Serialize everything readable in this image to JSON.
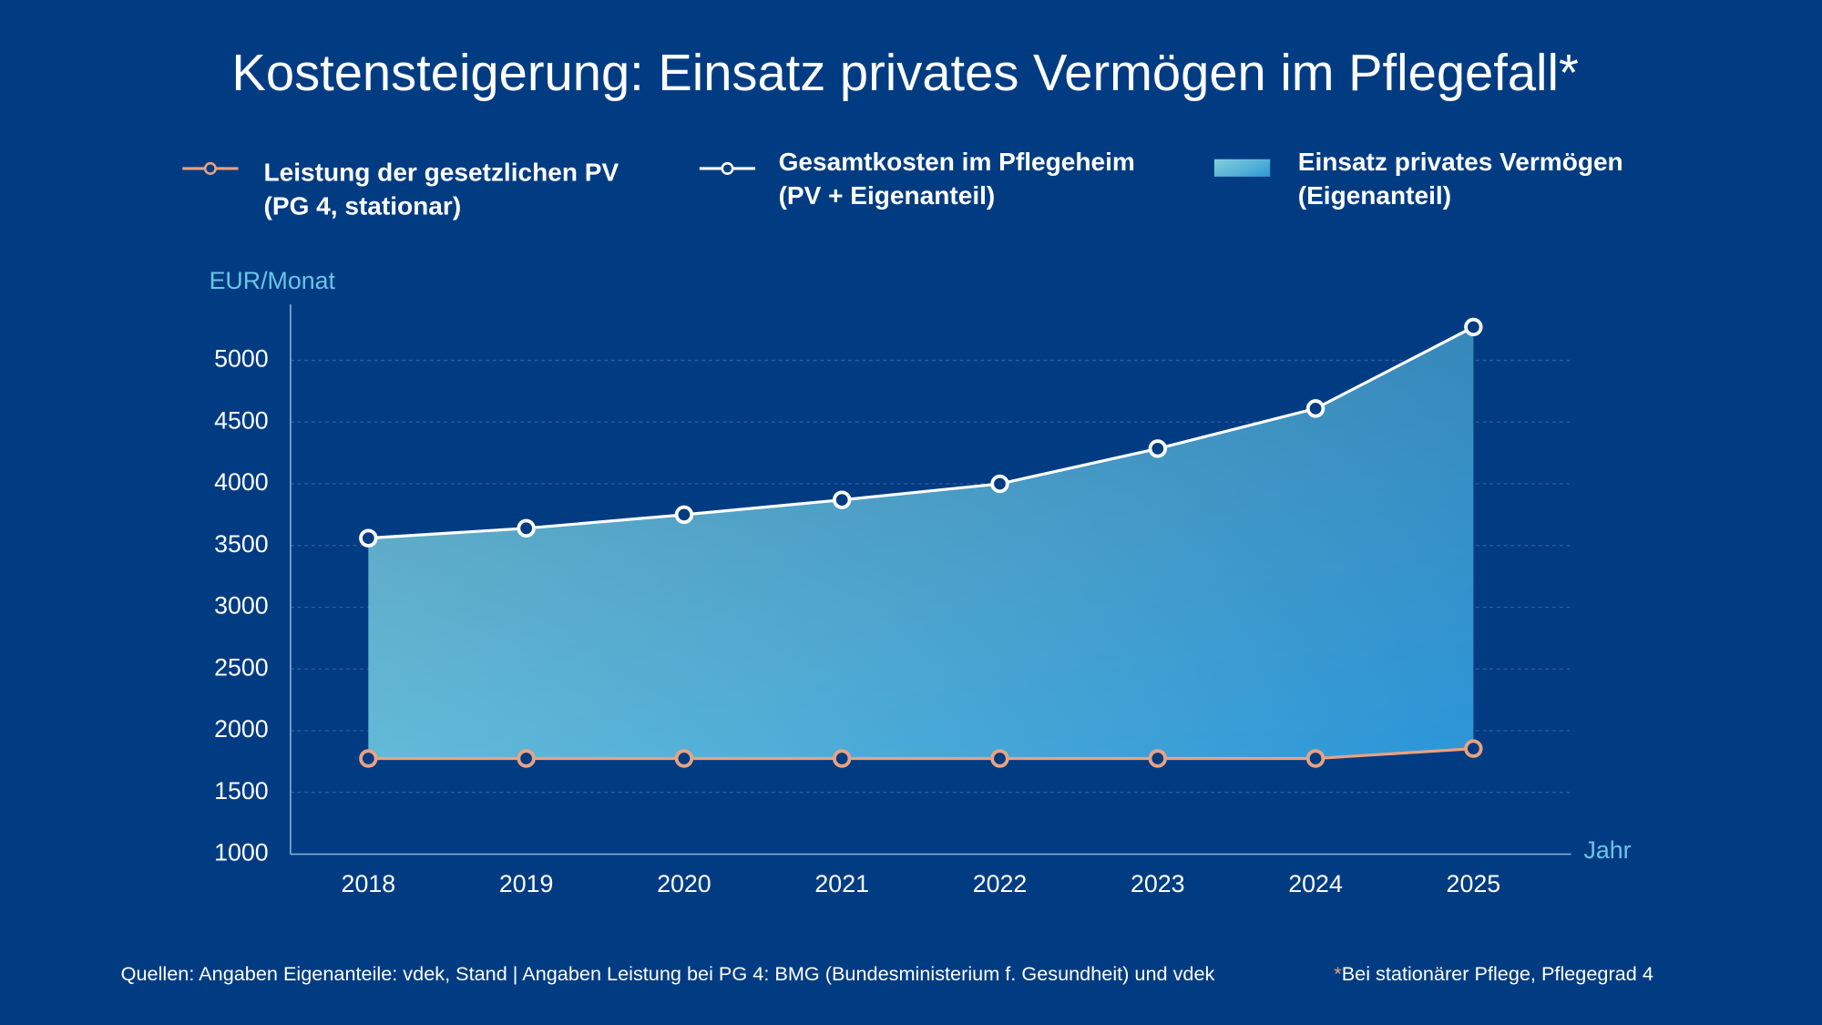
{
  "chart_data": {
    "type": "line",
    "title": "Kostensteigerung: Einsatz privates Vermögen im Pflegefall*",
    "y_label": "EUR/Monat",
    "x_label": "Jahr",
    "categories": [
      "2018",
      "2019",
      "2020",
      "2021",
      "2022",
      "2023",
      "2024",
      "2025"
    ],
    "series": [
      {
        "name": "Leistung der gesetzlichen PV",
        "name_detail": "(PG 4, stationar)",
        "color": "#e9a283",
        "values": [
          1775,
          1775,
          1775,
          1775,
          1775,
          1775,
          1775,
          1855
        ]
      },
      {
        "name": "Gesamtkosten im Pflegeheim",
        "name_detail": "(PV + Eigenanteil)",
        "color": "#ffffff",
        "values": [
          3560,
          3640,
          3750,
          3870,
          4000,
          4285,
          4610,
          5270
        ]
      }
    ],
    "area": {
      "name": "Einsatz privates Vermögen",
      "name_detail": "(Eigenanteil)"
    },
    "ylim": [
      1000,
      5500
    ],
    "yticks": [
      1000,
      1500,
      2000,
      2500,
      3000,
      3500,
      4000,
      4500,
      5000
    ],
    "grid": true,
    "source": "Quellen: Angaben Eigenanteile: vdek, Stand  | Angaben Leistung bei PG 4: BMG (Bundesministerium f. Gesundheit) und vdek",
    "note_mark": "*",
    "note": "Bei stationärer Pflege, Pflegegrad 4"
  }
}
